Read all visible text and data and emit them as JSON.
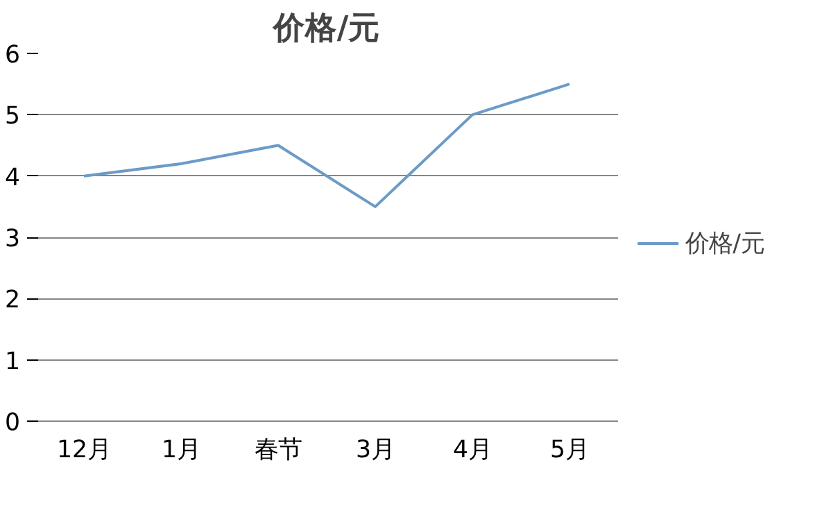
{
  "chart_data": {
    "type": "line",
    "title": "价格/元",
    "categories": [
      "12月",
      "1月",
      "春节",
      "3月",
      "4月",
      "5月"
    ],
    "series": [
      {
        "name": "价格/元",
        "color": "#6b9bc8",
        "values": [
          4,
          4.2,
          4.5,
          3.5,
          5,
          5.5
        ]
      }
    ],
    "ylim": [
      0,
      6
    ],
    "yticks": [
      0,
      1,
      2,
      3,
      4,
      5,
      6
    ],
    "grid": "y",
    "legend": "right",
    "marker": "none",
    "line_style": "solid"
  }
}
